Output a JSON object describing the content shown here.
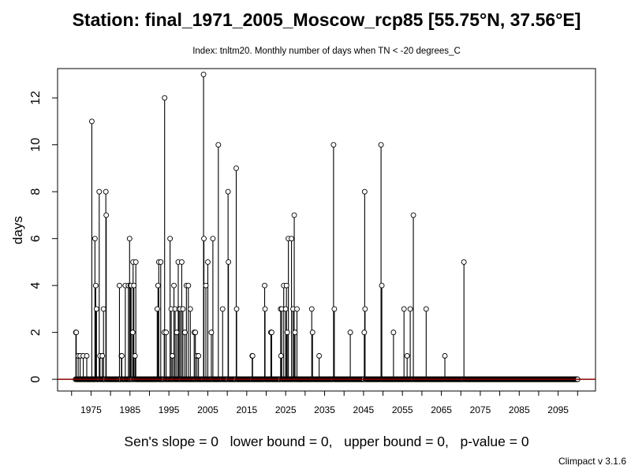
{
  "header": {
    "title": "Station: final_1971_2005_Moscow_rcp85 [55.75°N, 37.56°E]",
    "subtitle": "Index: tnltm20. Monthly number of days when TN < -20 degrees_C"
  },
  "footer": {
    "stats": "Sen's slope = 0   lower bound = 0,   upper bound = 0,   p-value = 0",
    "version": "Climpact v 3.1.6"
  },
  "colors": {
    "trend_line": "#8b0000",
    "points": "#000000",
    "background": "#ffffff"
  },
  "chart_data": {
    "type": "scatter",
    "title": "Station: final_1971_2005_Moscow_rcp85 [55.75°N, 37.56°E]",
    "subtitle": "Index: tnltm20. Monthly number of days when TN < -20 degrees_C",
    "xlabel": "",
    "ylabel": "days",
    "xlim": [
      1966.4,
      2104.6
    ],
    "ylim": [
      -0.5,
      13.25
    ],
    "x_ticks": [
      1970,
      1975,
      1980,
      1985,
      1990,
      1995,
      2000,
      2005,
      2010,
      2015,
      2020,
      2025,
      2030,
      2035,
      2040,
      2045,
      2050,
      2055,
      2060,
      2065,
      2070,
      2075,
      2080,
      2085,
      2090,
      2095,
      2100
    ],
    "x_tick_labels": [
      "1975",
      "1985",
      "1995",
      "2005",
      "2015",
      "2025",
      "2035",
      "2045",
      "2055",
      "2065",
      "2075",
      "2085",
      "2095"
    ],
    "y_ticks": [
      0,
      2,
      4,
      6,
      8,
      10,
      12
    ],
    "series": [
      {
        "style": "points-with-vertical-lines",
        "x_range": [
          1971,
          2100
        ],
        "nonzero_points": [
          [
            1971.1,
            2
          ],
          [
            1971.2,
            2
          ],
          [
            1971.7,
            1
          ],
          [
            1972.2,
            1
          ],
          [
            1973.0,
            1
          ],
          [
            1973.9,
            1
          ],
          [
            1975.2,
            11
          ],
          [
            1976.0,
            6
          ],
          [
            1976.2,
            4
          ],
          [
            1976.4,
            3
          ],
          [
            1977.1,
            8
          ],
          [
            1977.3,
            1
          ],
          [
            1977.9,
            1
          ],
          [
            1978.2,
            3
          ],
          [
            1978.8,
            8
          ],
          [
            1978.9,
            7
          ],
          [
            1982.3,
            4
          ],
          [
            1982.8,
            1
          ],
          [
            1982.9,
            1
          ],
          [
            1983.8,
            4
          ],
          [
            1984.6,
            4
          ],
          [
            1984.9,
            6
          ],
          [
            1985.1,
            4
          ],
          [
            1985.3,
            4
          ],
          [
            1985.7,
            2
          ],
          [
            1985.8,
            5
          ],
          [
            1986.0,
            4
          ],
          [
            1986.3,
            1
          ],
          [
            1986.5,
            5
          ],
          [
            1992.0,
            3
          ],
          [
            1992.2,
            4
          ],
          [
            1992.4,
            5
          ],
          [
            1992.9,
            5
          ],
          [
            1993.8,
            2
          ],
          [
            1993.9,
            12
          ],
          [
            1994.3,
            2
          ],
          [
            1995.3,
            6
          ],
          [
            1995.6,
            3
          ],
          [
            1995.9,
            1
          ],
          [
            1996.3,
            4
          ],
          [
            1996.6,
            3
          ],
          [
            1997.0,
            2
          ],
          [
            1997.4,
            5
          ],
          [
            1997.6,
            3
          ],
          [
            1997.9,
            3
          ],
          [
            1998.3,
            5
          ],
          [
            1998.6,
            3
          ],
          [
            1999.1,
            2
          ],
          [
            1999.5,
            4
          ],
          [
            2000.0,
            4
          ],
          [
            2000.5,
            3
          ],
          [
            2001.5,
            2
          ],
          [
            2001.8,
            2
          ],
          [
            2002.2,
            1
          ],
          [
            2002.6,
            1
          ],
          [
            2003.9,
            13
          ],
          [
            2004.0,
            6
          ],
          [
            2004.5,
            4
          ],
          [
            2005.0,
            5
          ],
          [
            2005.9,
            2
          ],
          [
            2006.3,
            6
          ],
          [
            2007.7,
            10
          ],
          [
            2008.8,
            3
          ],
          [
            2010.2,
            8
          ],
          [
            2010.3,
            5
          ],
          [
            2012.3,
            9
          ],
          [
            2012.4,
            3
          ],
          [
            2016.4,
            1
          ],
          [
            2016.5,
            1
          ],
          [
            2019.6,
            4
          ],
          [
            2019.7,
            3
          ],
          [
            2021.2,
            2
          ],
          [
            2021.4,
            2
          ],
          [
            2023.7,
            3
          ],
          [
            2023.8,
            1
          ],
          [
            2024.0,
            3
          ],
          [
            2024.5,
            4
          ],
          [
            2025.0,
            3
          ],
          [
            2025.2,
            4
          ],
          [
            2025.4,
            2
          ],
          [
            2025.7,
            6
          ],
          [
            2026.5,
            6
          ],
          [
            2026.9,
            3
          ],
          [
            2027.2,
            7
          ],
          [
            2027.4,
            2
          ],
          [
            2027.9,
            3
          ],
          [
            2031.7,
            3
          ],
          [
            2031.9,
            2
          ],
          [
            2033.6,
            1
          ],
          [
            2037.3,
            10
          ],
          [
            2037.5,
            3
          ],
          [
            2041.6,
            2
          ],
          [
            2045.2,
            2
          ],
          [
            2045.3,
            8
          ],
          [
            2045.4,
            3
          ],
          [
            2049.5,
            10
          ],
          [
            2049.7,
            4
          ],
          [
            2052.7,
            2
          ],
          [
            2055.4,
            3
          ],
          [
            2056.2,
            1
          ],
          [
            2057.0,
            3
          ],
          [
            2057.8,
            7
          ],
          [
            2061.1,
            3
          ],
          [
            2065.9,
            1
          ],
          [
            2070.8,
            5
          ]
        ]
      }
    ],
    "trend_line": {
      "value": 0
    },
    "grid": false,
    "legend": "none"
  }
}
